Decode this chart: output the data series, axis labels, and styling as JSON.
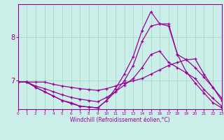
{
  "xlabel": "Windchill (Refroidissement éolien,°C)",
  "bg_color": "#cceee8",
  "grid_color": "#aaddcc",
  "line_color": "#990099",
  "xlim": [
    0,
    23
  ],
  "ylim": [
    6.35,
    8.75
  ],
  "xticks": [
    0,
    1,
    2,
    3,
    4,
    5,
    6,
    7,
    8,
    9,
    10,
    11,
    12,
    13,
    14,
    15,
    16,
    17,
    18,
    19,
    20,
    21,
    22,
    23
  ],
  "yticks": [
    7,
    8
  ],
  "lines": [
    {
      "x": [
        0,
        1,
        2,
        3,
        4,
        5,
        6,
        7,
        8,
        9,
        10,
        11,
        12,
        13,
        14,
        15,
        16,
        17,
        18,
        19,
        20,
        21,
        22,
        23
      ],
      "y": [
        6.97,
        6.97,
        6.97,
        6.97,
        6.92,
        6.88,
        6.85,
        6.82,
        6.8,
        6.78,
        6.82,
        6.88,
        6.95,
        7.0,
        7.05,
        7.15,
        7.25,
        7.35,
        7.42,
        7.48,
        7.5,
        7.15,
        6.85,
        6.55
      ]
    },
    {
      "x": [
        0,
        1,
        2,
        3,
        4,
        5,
        6,
        7,
        8,
        9,
        10,
        11,
        12,
        13,
        14,
        15,
        16,
        17,
        18,
        19,
        20,
        21,
        22,
        23
      ],
      "y": [
        6.97,
        6.97,
        6.88,
        6.82,
        6.75,
        6.68,
        6.62,
        6.58,
        6.55,
        6.52,
        6.62,
        6.75,
        6.9,
        7.05,
        7.3,
        7.6,
        7.68,
        7.42,
        7.3,
        7.18,
        7.05,
        6.8,
        6.6,
        6.42
      ]
    },
    {
      "x": [
        0,
        1,
        2,
        3,
        4,
        5,
        6,
        7,
        8,
        9,
        10,
        11,
        12,
        13,
        14,
        15,
        16,
        17,
        18,
        19,
        20,
        21,
        22,
        23
      ],
      "y": [
        6.97,
        6.97,
        6.85,
        6.75,
        6.65,
        6.55,
        6.5,
        6.42,
        6.4,
        6.38,
        6.55,
        6.75,
        7.0,
        7.35,
        7.9,
        8.25,
        8.3,
        8.25,
        7.6,
        7.2,
        6.95,
        6.72,
        6.5,
        6.38
      ]
    },
    {
      "x": [
        0,
        1,
        2,
        3,
        4,
        5,
        6,
        7,
        8,
        9,
        10,
        11,
        12,
        13,
        14,
        15,
        16,
        17,
        18,
        19,
        20,
        21,
        22,
        23
      ],
      "y": [
        6.97,
        6.97,
        6.85,
        6.75,
        6.65,
        6.55,
        6.48,
        6.42,
        6.4,
        6.38,
        6.55,
        6.82,
        7.15,
        7.55,
        8.15,
        8.58,
        8.3,
        8.3,
        7.6,
        7.48,
        7.3,
        7.08,
        6.85,
        6.6
      ]
    }
  ]
}
